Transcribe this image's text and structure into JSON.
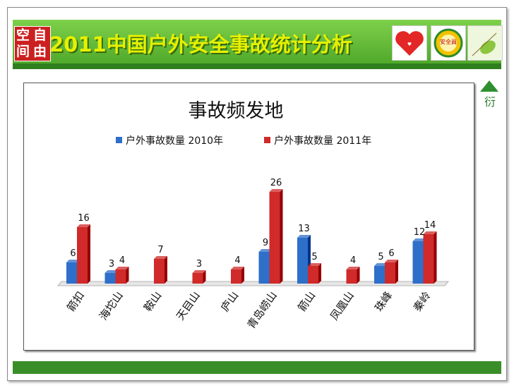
{
  "header": {
    "logo_chars": [
      "空",
      "自",
      "间",
      "由"
    ],
    "title": "2011中国户外安全事故统计分析",
    "badges": [
      "heart-badge",
      "safety-badge",
      "leaf-badge"
    ],
    "badge2_text": "安全員"
  },
  "chart_data": {
    "type": "bar",
    "title": "事故频发地",
    "legend_position": "top",
    "categories": [
      "箭扣",
      "海坨山",
      "鞍山",
      "天目山",
      "庐山",
      "青岛崂山",
      "箭山",
      "凤凰山",
      "珠峰",
      "秦岭"
    ],
    "series": [
      {
        "name": "户外事故数量 2010年",
        "color": "#2e6fc9",
        "values": [
          6,
          3,
          null,
          null,
          null,
          9,
          13,
          null,
          5,
          12
        ]
      },
      {
        "name": "户外事故数量 2011年",
        "color": "#d02a2a",
        "values": [
          16,
          4,
          7,
          3,
          4,
          26,
          5,
          4,
          6,
          14
        ]
      }
    ],
    "ylim": [
      0,
      26
    ],
    "grid": false
  },
  "colors": {
    "header_green": "#5db832",
    "title_yellow": "#e6f000",
    "blue": "#2e6fc9",
    "red": "#d02a2a"
  }
}
